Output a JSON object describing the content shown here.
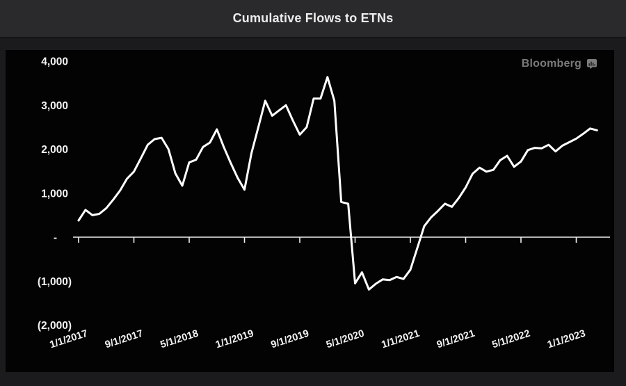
{
  "header": {
    "title": "Cumulative Flows to ETNs"
  },
  "watermark": {
    "label": "Bloomberg",
    "icon": "bar-chart-terminal-icon"
  },
  "colors": {
    "page_bg": "#1b1b1d",
    "header_bg": "#2a2a2c",
    "panel_bg": "#030303",
    "title_text": "#ececec",
    "watermark_text": "#7a7a7a",
    "line": "#ffffff",
    "axis": "#f0f0f0",
    "tick_label": "#f2f2f2"
  },
  "chart_data": {
    "type": "line",
    "title": "Cumulative Flows to ETNs",
    "x_unit": "month",
    "x_start": "1/1/2017",
    "x_end": "4/1/2023",
    "grid": false,
    "legend": "none",
    "ylim": [
      -2000,
      4000
    ],
    "y_tick_values": [
      4000,
      3000,
      2000,
      1000,
      0,
      -1000,
      -2000
    ],
    "y_tick_labels": [
      "4,000",
      "3,000",
      "2,000",
      "1,000",
      "-",
      "(1,000)",
      "(2,000)"
    ],
    "x_tick_month_offsets": [
      0,
      8,
      16,
      24,
      32,
      40,
      48,
      56,
      64,
      72
    ],
    "x_tick_labels": [
      "1/1/2017",
      "9/1/2017",
      "5/1/2018",
      "1/1/2019",
      "9/1/2019",
      "5/1/2020",
      "1/1/2021",
      "9/1/2021",
      "5/1/2022",
      "1/1/2023"
    ],
    "series": [
      {
        "name": "Cumulative Flows to ETNs",
        "frequency": "monthly",
        "values": [
          380,
          620,
          500,
          530,
          660,
          850,
          1060,
          1330,
          1490,
          1790,
          2100,
          2230,
          2260,
          2000,
          1450,
          1170,
          1700,
          1760,
          2050,
          2150,
          2450,
          2050,
          1690,
          1350,
          1080,
          1900,
          2500,
          3100,
          2760,
          2880,
          3000,
          2650,
          2330,
          2500,
          3150,
          3150,
          3640,
          3100,
          800,
          760,
          -1050,
          -800,
          -1190,
          -1060,
          -960,
          -975,
          -905,
          -950,
          -740,
          -250,
          250,
          450,
          600,
          760,
          690,
          890,
          1130,
          1440,
          1580,
          1490,
          1530,
          1750,
          1850,
          1600,
          1720,
          1980,
          2030,
          2020,
          2100,
          1950,
          2080,
          2160,
          2240,
          2350,
          2470,
          2430
        ]
      }
    ]
  }
}
